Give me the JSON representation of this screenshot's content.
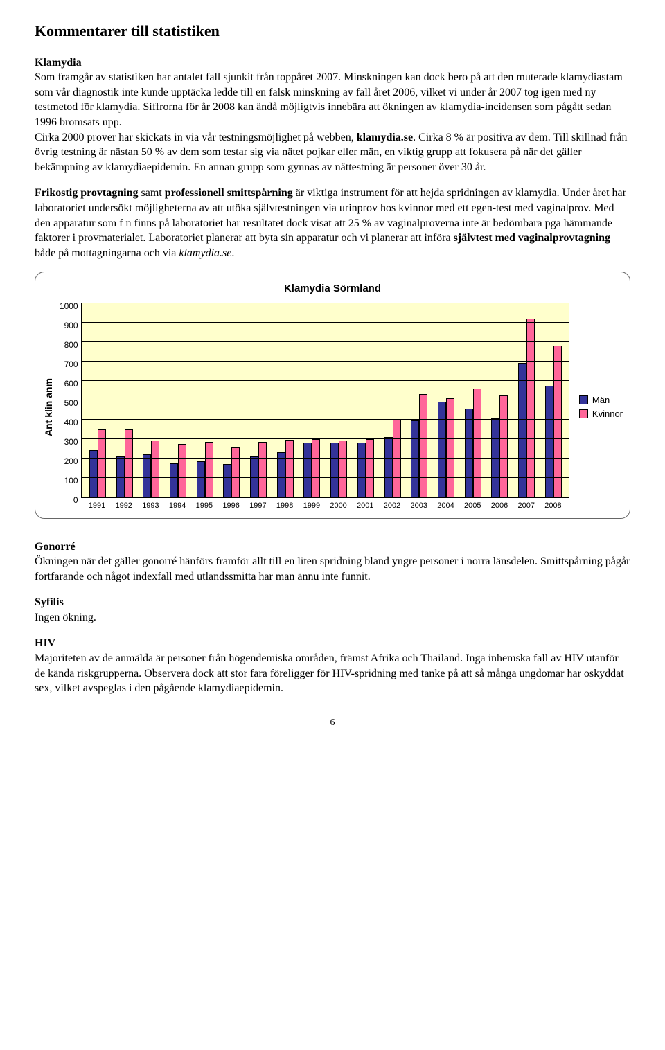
{
  "page": {
    "title": "Kommentarer till statistiken",
    "number": "6"
  },
  "sections": {
    "klamydia": {
      "heading": "Klamydia",
      "p1_a": "Som framgår av statistiken har antalet fall sjunkit från toppåret 2007.",
      "p1_b": "Minskningen kan dock bero på att den muterade klamydiastam som vår diagnostik inte kunde upptäcka ledde till en falsk minskning av fall året 2006, vilket vi under år 2007 tog igen med ny testmetod för klamydia. Siffrorna för år 2008 kan ändå möjligtvis innebära att ökningen av klamydia-incidensen som pågått sedan 1996 bromsats upp.",
      "p1_c_a": "Cirka 2000 prover har skickats in via vår testningsmöjlighet på webben, ",
      "p1_c_bold1": "klamydia.se",
      "p1_c_b": ". Cirka 8 % är positiva av dem. Till skillnad från övrig testning är nästan 50 % av dem som testar sig via nätet pojkar eller män, en viktig grupp att fokusera på när det gäller bekämpning av klamydiaepidemin. En annan grupp som gynnas av nättestning är personer över 30 år.",
      "p2_bold1": "Frikostig provtagning",
      "p2_mid": " samt ",
      "p2_bold2": "professionell smittspårning",
      "p2_rest": " är viktiga instrument för att hejda spridningen av klamydia. Under året har laboratoriet undersökt möjligheterna av att utöka självtestningen via urinprov hos kvinnor med ett egen-test med vaginalprov. Med den apparatur som f n finns på laboratoriet har resultatet dock visat att 25 % av vaginalproverna inte är bedömbara pga hämmande faktorer i provmaterialet. Laboratoriet planerar att byta sin apparatur och vi planerar att införa ",
      "p2_bold3": "självtest med vaginalprovtagning",
      "p2_rest2": " både på mottagningarna och via ",
      "p2_italic": "klamydia.se",
      "p2_end": "."
    },
    "gonorre": {
      "heading": "Gonorré",
      "body": "Ökningen när det gäller gonorré hänförs framför allt till en liten spridning bland yngre personer i norra länsdelen. Smittspårning pågår fortfarande och något indexfall med utlandssmitta har man ännu inte funnit."
    },
    "syfilis": {
      "heading": "Syfilis",
      "body": "Ingen ökning."
    },
    "hiv": {
      "heading": "HIV",
      "body": "Majoriteten av de anmälda är personer från högendemiska områden, främst Afrika och Thailand. Inga inhemska fall av HIV utanför de kända riskgrupperna. Observera dock att stor fara föreligger för HIV-spridning med tanke på att så många ungdomar har oskyddat sex, vilket avspeglas i den pågående klamydiaepidemin."
    }
  },
  "chart": {
    "type": "bar",
    "title": "Klamydia Sörmland",
    "ylabel": "Ant klin anm",
    "ylim": [
      0,
      1000
    ],
    "ytick_step": 100,
    "yticks": [
      "1000",
      "900",
      "800",
      "700",
      "600",
      "500",
      "400",
      "300",
      "200",
      "100",
      "0"
    ],
    "categories": [
      "1991",
      "1992",
      "1993",
      "1994",
      "1995",
      "1996",
      "1997",
      "1998",
      "1999",
      "2000",
      "2001",
      "2002",
      "2003",
      "2004",
      "2005",
      "2006",
      "2007",
      "2008"
    ],
    "series": [
      {
        "name": "Män",
        "color": "#333399",
        "values": [
          240,
          210,
          220,
          175,
          185,
          170,
          210,
          230,
          280,
          280,
          280,
          310,
          395,
          490,
          455,
          405,
          690,
          575
        ]
      },
      {
        "name": "Kvinnor",
        "color": "#ff6699",
        "values": [
          350,
          350,
          290,
          275,
          285,
          255,
          285,
          295,
          300,
          290,
          300,
          400,
          530,
          510,
          560,
          525,
          920,
          780
        ]
      }
    ],
    "plot_background": "#ffffcc",
    "grid_color": "#000000",
    "bar_border": "#000000",
    "font_family": "Arial"
  }
}
